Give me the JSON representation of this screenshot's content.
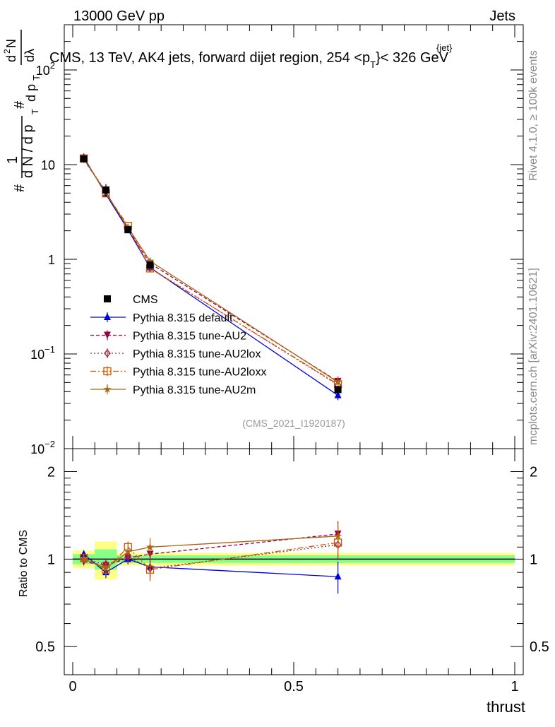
{
  "header": {
    "energy_label": "13000 GeV pp",
    "category_label": "Jets",
    "title_main": "CMS, 13 TeV, AK4 jets, forward dijet region, 254 <p",
    "title_sup": "{jet}",
    "title_sub": "T",
    "title_end": "}< 326 GeV",
    "side_rivet": "Rivet 4.1.0, ≥ 100k events",
    "side_mcplots": "mcplots.cern.ch [arXiv:2401.10621]",
    "analysis_id": "(CMS_2021_I1920187)"
  },
  "y_axis": {
    "label_parts": [
      "#",
      "1",
      "d N / d p",
      "T",
      "#",
      "d p",
      "T",
      "d",
      "2",
      "N",
      "dλ"
    ]
  },
  "ratio_axis": {
    "label": "Ratio to CMS",
    "ticks": [
      "0.5",
      "1",
      "2"
    ]
  },
  "x_axis": {
    "label": "thrust",
    "ticks": [
      "0",
      "0.5",
      "1"
    ]
  },
  "colors": {
    "cms": "#000000",
    "default": "#0000dd",
    "au2": "#990044",
    "au2lox": "#aa2244",
    "au2loxx": "#cc5500",
    "au2m": "#aa6611",
    "band_inner": "#88ff88",
    "band_outer": "#ffff88"
  },
  "chart_data": {
    "type": "line",
    "xlim": [
      0,
      1
    ],
    "ylim_main": [
      0.01,
      300
    ],
    "ylog": true,
    "ylim_ratio": [
      0.4,
      2.4
    ],
    "main_ticks": [
      {
        "v": 0.01,
        "b": "10",
        "e": "−2"
      },
      {
        "v": 0.1,
        "b": "10",
        "e": "−1"
      },
      {
        "v": 1,
        "b": "1",
        "e": ""
      },
      {
        "v": 10,
        "b": "10",
        "e": ""
      },
      {
        "v": 100,
        "b": "10",
        "e": "2"
      }
    ],
    "bins": [
      [
        0,
        0.05
      ],
      [
        0.05,
        0.1
      ],
      [
        0.1,
        0.15
      ],
      [
        0.15,
        0.2
      ],
      [
        0.2,
        1.0
      ]
    ],
    "x": [
      0.025,
      0.075,
      0.125,
      0.175,
      0.6
    ],
    "data": {
      "name": "CMS",
      "values": [
        11.5,
        5.4,
        2.05,
        0.87,
        0.042
      ],
      "stat_rel": [
        0.04,
        0.08,
        0.03,
        0.03,
        0.03
      ],
      "tot_rel": [
        0.07,
        0.15,
        0.05,
        0.05,
        0.05
      ]
    },
    "series": [
      {
        "name": "Pythia 8.315 default",
        "key": "default",
        "marker": "triangle-up",
        "dash": "",
        "ratio": [
          1.04,
          0.9,
          1.0,
          0.94,
          0.87
        ],
        "err": [
          0.03,
          0.04,
          0.04,
          0.07,
          0.11
        ]
      },
      {
        "name": "Pythia 8.315 tune-AU2",
        "key": "au2",
        "marker": "triangle-down",
        "dash": "5,3",
        "ratio": [
          0.98,
          0.95,
          1.01,
          1.04,
          1.22
        ],
        "err": [
          0.03,
          0.04,
          0.05,
          0.08,
          0.13
        ]
      },
      {
        "name": "Pythia 8.315 tune-AU2lox",
        "key": "au2lox",
        "marker": "diamond-open",
        "dash": "2,3",
        "ratio": [
          1.0,
          0.96,
          1.02,
          0.93,
          1.12
        ],
        "err": [
          0.03,
          0.04,
          0.05,
          0.08,
          0.12
        ]
      },
      {
        "name": "Pythia 8.315 tune-AU2loxx",
        "key": "au2loxx",
        "marker": "square-open",
        "dash": "8,3,2,3",
        "ratio": [
          1.01,
          0.92,
          1.1,
          0.92,
          1.14
        ],
        "err": [
          0.03,
          0.04,
          0.05,
          0.08,
          0.12
        ]
      },
      {
        "name": "Pythia 8.315 tune-AU2m",
        "key": "au2m",
        "marker": "star",
        "dash": "",
        "ratio": [
          1.0,
          0.93,
          1.06,
          1.1,
          1.2
        ],
        "err": [
          0.03,
          0.04,
          0.05,
          0.08,
          0.13
        ]
      }
    ],
    "legend_data_label": "CMS",
    "legend_position": "middle-left"
  }
}
